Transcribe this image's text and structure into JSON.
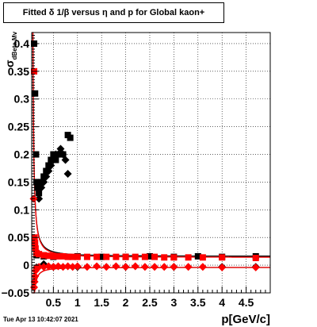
{
  "title": "Fitted δ 1/β versus η and p for Global kaon+",
  "footer_date": "Tue Apr 13 10:42:07 2021",
  "chart_data": {
    "type": "scatter",
    "xlabel": "p[GeV/c]",
    "ylabel_main": "σ",
    "ylabel_sub": "dBeta Mv",
    "xlim": [
      0.05,
      5.0
    ],
    "ylim": [
      -0.05,
      0.42
    ],
    "x_ticks": [
      0.5,
      1,
      1.5,
      2,
      2.5,
      3,
      3.5,
      4,
      4.5
    ],
    "x_tick_labels": [
      "0.5",
      "1",
      "1.5",
      "2",
      "2.5",
      "3",
      "3.5",
      "4",
      "4.5"
    ],
    "y_ticks": [
      -0.05,
      0,
      0.05,
      0.1,
      0.15,
      0.2,
      0.25,
      0.3,
      0.35,
      0.4
    ],
    "y_tick_labels": [
      "−0.05",
      "0",
      "0.05",
      "0.1",
      "0.15",
      "0.2",
      "0.25",
      "0.3",
      "0.35",
      "0.4"
    ],
    "grid": true,
    "series": [
      {
        "marker": "square",
        "color": "#000000",
        "points": [
          [
            0.1,
            0.4
          ],
          [
            0.12,
            0.31
          ],
          [
            0.14,
            0.2
          ],
          [
            0.15,
            0.15
          ],
          [
            0.17,
            0.14
          ],
          [
            0.2,
            0.13
          ],
          [
            0.22,
            0.145
          ],
          [
            0.25,
            0.15
          ],
          [
            0.3,
            0.16
          ],
          [
            0.35,
            0.17
          ],
          [
            0.4,
            0.18
          ],
          [
            0.45,
            0.19
          ],
          [
            0.5,
            0.2
          ],
          [
            0.55,
            0.19
          ],
          [
            0.6,
            0.2
          ],
          [
            0.7,
            0.2
          ],
          [
            0.8,
            0.235
          ],
          [
            0.85,
            0.23
          ],
          [
            0.15,
            0.018
          ],
          [
            0.3,
            0.016
          ],
          [
            0.5,
            0.015
          ],
          [
            1.0,
            0.016
          ],
          [
            1.5,
            0.015
          ],
          [
            2.0,
            0.015
          ],
          [
            2.5,
            0.016
          ],
          [
            3.0,
            0.015
          ],
          [
            3.5,
            0.016
          ],
          [
            4.0,
            0.015
          ],
          [
            4.7,
            0.016
          ]
        ]
      },
      {
        "marker": "diamond",
        "color": "#000000",
        "points": [
          [
            0.2,
            0.12
          ],
          [
            0.25,
            0.14
          ],
          [
            0.3,
            0.15
          ],
          [
            0.35,
            0.16
          ],
          [
            0.4,
            0.17
          ],
          [
            0.45,
            0.18
          ],
          [
            0.5,
            0.19
          ],
          [
            0.55,
            0.2
          ],
          [
            0.6,
            0.2
          ],
          [
            0.65,
            0.21
          ],
          [
            0.7,
            0.2
          ],
          [
            0.75,
            0.19
          ],
          [
            0.8,
            0.165
          ],
          [
            0.15,
            -0.004
          ],
          [
            0.3,
            0.002
          ],
          [
            0.5,
            -0.003
          ],
          [
            1.0,
            -0.003
          ],
          [
            2.0,
            -0.003
          ],
          [
            3.0,
            -0.003
          ],
          [
            4.0,
            -0.003
          ],
          [
            4.7,
            -0.003
          ]
        ]
      },
      {
        "marker": "square",
        "color": "#ff0000",
        "points": [
          [
            0.1,
            0.35
          ],
          [
            0.11,
            0.05
          ],
          [
            0.12,
            0.04
          ],
          [
            0.13,
            0.03
          ],
          [
            0.15,
            0.022
          ],
          [
            0.2,
            0.02
          ],
          [
            0.3,
            0.018
          ],
          [
            0.4,
            0.017
          ],
          [
            0.5,
            0.016
          ],
          [
            0.6,
            0.016
          ],
          [
            0.7,
            0.016
          ],
          [
            0.8,
            0.015
          ],
          [
            0.9,
            0.015
          ],
          [
            1.0,
            0.015
          ],
          [
            1.2,
            0.015
          ],
          [
            1.4,
            0.015
          ],
          [
            1.6,
            0.015
          ],
          [
            1.8,
            0.015
          ],
          [
            2.0,
            0.015
          ],
          [
            2.2,
            0.015
          ],
          [
            2.4,
            0.015
          ],
          [
            2.6,
            0.015
          ],
          [
            2.8,
            0.014
          ],
          [
            3.0,
            0.014
          ],
          [
            3.3,
            0.014
          ],
          [
            3.6,
            0.014
          ],
          [
            4.0,
            0.014
          ],
          [
            4.7,
            0.013
          ]
        ]
      },
      {
        "marker": "diamond",
        "color": "#ff0000",
        "points": [
          [
            0.09,
            0.12
          ],
          [
            0.1,
            -0.04
          ],
          [
            0.11,
            -0.03
          ],
          [
            0.12,
            -0.02
          ],
          [
            0.13,
            -0.01
          ],
          [
            0.15,
            -0.005
          ],
          [
            0.2,
            -0.003
          ],
          [
            0.3,
            -0.003
          ],
          [
            0.4,
            -0.002
          ],
          [
            0.5,
            -0.003
          ],
          [
            0.6,
            -0.002
          ],
          [
            0.7,
            -0.003
          ],
          [
            0.8,
            -0.002
          ],
          [
            0.9,
            -0.003
          ],
          [
            1.0,
            -0.002
          ],
          [
            1.2,
            -0.003
          ],
          [
            1.4,
            -0.002
          ],
          [
            1.6,
            -0.003
          ],
          [
            1.8,
            -0.002
          ],
          [
            2.0,
            -0.003
          ],
          [
            2.2,
            -0.002
          ],
          [
            2.4,
            -0.003
          ],
          [
            2.6,
            -0.003
          ],
          [
            2.8,
            -0.003
          ],
          [
            3.0,
            -0.003
          ],
          [
            3.3,
            -0.003
          ],
          [
            3.6,
            -0.003
          ],
          [
            4.0,
            -0.004
          ],
          [
            4.7,
            -0.004
          ]
        ]
      }
    ],
    "fit_curves": [
      {
        "color": "#000000",
        "shape": "upper",
        "level": 0.016
      },
      {
        "color": "#000000",
        "shape": "lower",
        "level": -0.004
      },
      {
        "color": "#ff0000",
        "shape": "upper",
        "level": 0.014
      },
      {
        "color": "#ff0000",
        "shape": "lower",
        "level": -0.004
      }
    ]
  }
}
